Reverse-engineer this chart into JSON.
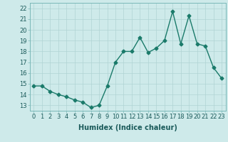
{
  "x": [
    0,
    1,
    2,
    3,
    4,
    5,
    6,
    7,
    8,
    9,
    10,
    11,
    12,
    13,
    14,
    15,
    16,
    17,
    18,
    19,
    20,
    21,
    22,
    23
  ],
  "y": [
    14.8,
    14.8,
    14.3,
    14.0,
    13.8,
    13.5,
    13.3,
    12.8,
    13.0,
    14.8,
    17.0,
    18.0,
    18.0,
    19.3,
    17.9,
    18.3,
    19.0,
    21.7,
    18.7,
    21.3,
    18.7,
    18.5,
    16.5,
    15.5
  ],
  "line_color": "#1a7a6a",
  "marker": "D",
  "markersize": 2.5,
  "linewidth": 1.0,
  "xlabel": "Humidex (Indice chaleur)",
  "xlabel_fontsize": 7,
  "ylabel_ticks": [
    13,
    14,
    15,
    16,
    17,
    18,
    19,
    20,
    21,
    22
  ],
  "xticks": [
    0,
    1,
    2,
    3,
    4,
    5,
    6,
    7,
    8,
    9,
    10,
    11,
    12,
    13,
    14,
    15,
    16,
    17,
    18,
    19,
    20,
    21,
    22,
    23
  ],
  "ylim": [
    12.5,
    22.5
  ],
  "xlim": [
    -0.5,
    23.5
  ],
  "bg_color": "#ceeaea",
  "grid_color": "#b0d4d4",
  "tick_fontsize": 6,
  "title": ""
}
